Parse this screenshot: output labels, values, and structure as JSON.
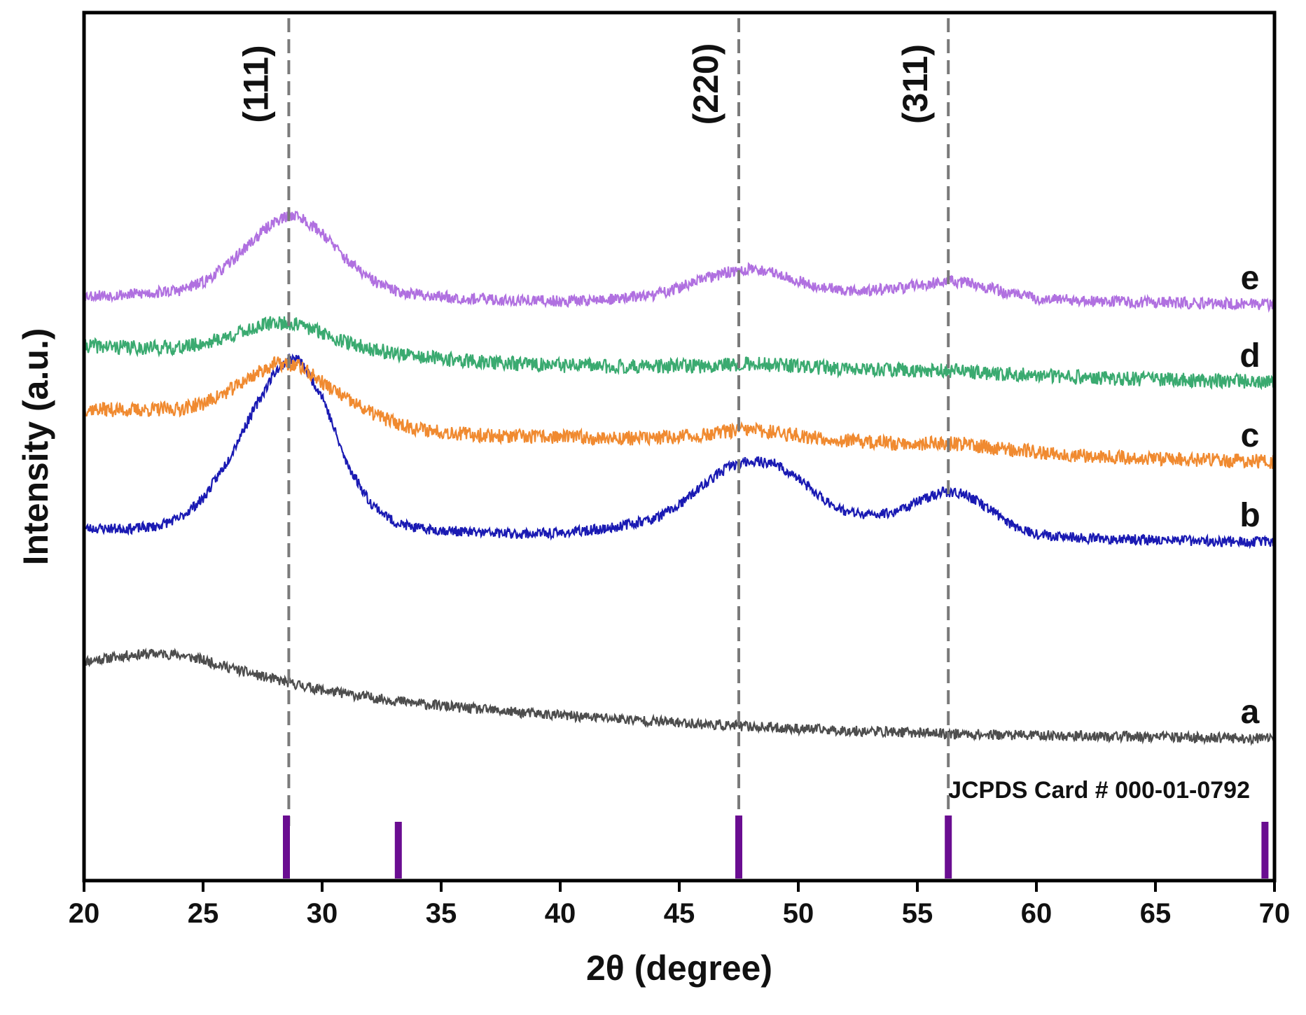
{
  "chart_data": {
    "type": "line",
    "title": "",
    "xlabel": "2θ (degree)",
    "ylabel": "Intensity (a.u.)",
    "xlim": [
      20,
      70
    ],
    "xticks": [
      "20",
      "25",
      "30",
      "35",
      "40",
      "45",
      "50",
      "55",
      "60",
      "65",
      "70"
    ],
    "grid": false,
    "series": [
      {
        "name": "a",
        "label": "a",
        "color": "#4d4d4d",
        "noise": 0.35,
        "seed": 11,
        "points": [
          [
            20,
            1.0
          ],
          [
            21,
            1.05
          ],
          [
            22,
            1.1
          ],
          [
            23,
            1.12
          ],
          [
            24,
            1.1
          ],
          [
            25,
            1.02
          ],
          [
            26,
            0.92
          ],
          [
            27,
            0.82
          ],
          [
            28,
            0.73
          ],
          [
            29,
            0.65
          ],
          [
            30,
            0.57
          ],
          [
            32,
            0.46
          ],
          [
            34,
            0.37
          ],
          [
            36,
            0.3
          ],
          [
            38,
            0.24
          ],
          [
            40,
            0.19
          ],
          [
            42,
            0.15
          ],
          [
            44,
            0.1
          ],
          [
            46,
            0.06
          ],
          [
            48,
            0.02
          ],
          [
            50,
            -0.01
          ],
          [
            52,
            -0.04
          ],
          [
            54,
            -0.06
          ],
          [
            56,
            -0.08
          ],
          [
            58,
            -0.1
          ],
          [
            60,
            -0.11
          ],
          [
            62,
            -0.12
          ],
          [
            64,
            -0.13
          ],
          [
            66,
            -0.14
          ],
          [
            68,
            -0.15
          ],
          [
            70,
            -0.16
          ]
        ]
      },
      {
        "name": "b",
        "label": "b",
        "color": "#1a1ab3",
        "noise": 0.35,
        "seed": 23,
        "points": [
          [
            20,
            3.0
          ],
          [
            22,
            3.0
          ],
          [
            23,
            3.03
          ],
          [
            24,
            3.15
          ],
          [
            25,
            3.45
          ],
          [
            26,
            4.0
          ],
          [
            27,
            4.7
          ],
          [
            28,
            5.35
          ],
          [
            28.6,
            5.55
          ],
          [
            29,
            5.55
          ],
          [
            30,
            5.0
          ],
          [
            31,
            4.0
          ],
          [
            32,
            3.4
          ],
          [
            33,
            3.1
          ],
          [
            34,
            3.0
          ],
          [
            36,
            2.95
          ],
          [
            38,
            2.92
          ],
          [
            40,
            2.93
          ],
          [
            42,
            3.0
          ],
          [
            44,
            3.15
          ],
          [
            45,
            3.35
          ],
          [
            46,
            3.65
          ],
          [
            47,
            3.92
          ],
          [
            48,
            4.02
          ],
          [
            49,
            3.98
          ],
          [
            50,
            3.75
          ],
          [
            51,
            3.45
          ],
          [
            52,
            3.25
          ],
          [
            53,
            3.2
          ],
          [
            54,
            3.25
          ],
          [
            55,
            3.4
          ],
          [
            56,
            3.55
          ],
          [
            57,
            3.52
          ],
          [
            58,
            3.3
          ],
          [
            59,
            3.05
          ],
          [
            60,
            2.92
          ],
          [
            62,
            2.85
          ],
          [
            65,
            2.83
          ],
          [
            68,
            2.8
          ],
          [
            70,
            2.8
          ]
        ]
      },
      {
        "name": "c",
        "label": "c",
        "color": "#f08a30",
        "noise": 0.5,
        "seed": 37,
        "points": [
          [
            20,
            4.8
          ],
          [
            22,
            4.78
          ],
          [
            24,
            4.8
          ],
          [
            25,
            4.88
          ],
          [
            26,
            5.05
          ],
          [
            27,
            5.28
          ],
          [
            28,
            5.48
          ],
          [
            29,
            5.45
          ],
          [
            30,
            5.2
          ],
          [
            31,
            4.95
          ],
          [
            32,
            4.75
          ],
          [
            33,
            4.6
          ],
          [
            34,
            4.5
          ],
          [
            36,
            4.42
          ],
          [
            38,
            4.38
          ],
          [
            40,
            4.38
          ],
          [
            42,
            4.36
          ],
          [
            44,
            4.36
          ],
          [
            46,
            4.4
          ],
          [
            47,
            4.46
          ],
          [
            48,
            4.48
          ],
          [
            49,
            4.45
          ],
          [
            50,
            4.4
          ],
          [
            52,
            4.32
          ],
          [
            54,
            4.28
          ],
          [
            56,
            4.28
          ],
          [
            57,
            4.27
          ],
          [
            58,
            4.22
          ],
          [
            60,
            4.15
          ],
          [
            62,
            4.1
          ],
          [
            65,
            4.05
          ],
          [
            68,
            4.02
          ],
          [
            70,
            4.0
          ]
        ]
      },
      {
        "name": "d",
        "label": "d",
        "color": "#3aaa70",
        "noise": 0.5,
        "seed": 41,
        "points": [
          [
            20,
            5.75
          ],
          [
            22,
            5.72
          ],
          [
            24,
            5.72
          ],
          [
            25,
            5.78
          ],
          [
            26,
            5.88
          ],
          [
            27,
            6.0
          ],
          [
            28,
            6.1
          ],
          [
            29,
            6.06
          ],
          [
            30,
            5.95
          ],
          [
            31,
            5.8
          ],
          [
            32,
            5.7
          ],
          [
            34,
            5.58
          ],
          [
            36,
            5.52
          ],
          [
            38,
            5.48
          ],
          [
            40,
            5.45
          ],
          [
            42,
            5.44
          ],
          [
            44,
            5.44
          ],
          [
            46,
            5.44
          ],
          [
            47,
            5.47
          ],
          [
            48,
            5.48
          ],
          [
            50,
            5.44
          ],
          [
            52,
            5.4
          ],
          [
            54,
            5.38
          ],
          [
            56,
            5.38
          ],
          [
            58,
            5.34
          ],
          [
            60,
            5.3
          ],
          [
            62,
            5.27
          ],
          [
            65,
            5.24
          ],
          [
            68,
            5.22
          ],
          [
            70,
            5.2
          ]
        ]
      },
      {
        "name": "e",
        "label": "e",
        "color": "#b070e0",
        "noise": 0.4,
        "seed": 53,
        "points": [
          [
            20,
            6.5
          ],
          [
            22,
            6.52
          ],
          [
            24,
            6.58
          ],
          [
            25,
            6.7
          ],
          [
            26,
            6.95
          ],
          [
            27,
            7.3
          ],
          [
            28,
            7.62
          ],
          [
            28.8,
            7.72
          ],
          [
            29,
            7.7
          ],
          [
            30,
            7.45
          ],
          [
            31,
            7.05
          ],
          [
            32,
            6.75
          ],
          [
            33,
            6.58
          ],
          [
            34,
            6.52
          ],
          [
            36,
            6.46
          ],
          [
            38,
            6.43
          ],
          [
            40,
            6.42
          ],
          [
            42,
            6.44
          ],
          [
            44,
            6.52
          ],
          [
            45,
            6.62
          ],
          [
            46,
            6.75
          ],
          [
            47,
            6.85
          ],
          [
            48,
            6.9
          ],
          [
            49,
            6.85
          ],
          [
            50,
            6.72
          ],
          [
            51,
            6.62
          ],
          [
            52,
            6.58
          ],
          [
            53,
            6.58
          ],
          [
            54,
            6.6
          ],
          [
            55,
            6.66
          ],
          [
            56,
            6.72
          ],
          [
            57,
            6.7
          ],
          [
            58,
            6.62
          ],
          [
            59,
            6.52
          ],
          [
            60,
            6.46
          ],
          [
            62,
            6.42
          ],
          [
            65,
            6.4
          ],
          [
            68,
            6.38
          ],
          [
            70,
            6.37
          ]
        ]
      }
    ],
    "reference_lines": [
      {
        "x": 28.6,
        "label": "(111)"
      },
      {
        "x": 47.5,
        "label": "(220)"
      },
      {
        "x": 56.3,
        "label": "(311)"
      }
    ],
    "reference_peaks": {
      "card_label": "JCPDS Card # 000-01-0792",
      "color": "#6a0d91",
      "peaks": [
        {
          "x": 28.5,
          "height": 1.0
        },
        {
          "x": 33.2,
          "height": 0.9
        },
        {
          "x": 47.5,
          "height": 1.0
        },
        {
          "x": 56.3,
          "height": 1.0
        },
        {
          "x": 69.6,
          "height": 0.9
        }
      ]
    }
  }
}
